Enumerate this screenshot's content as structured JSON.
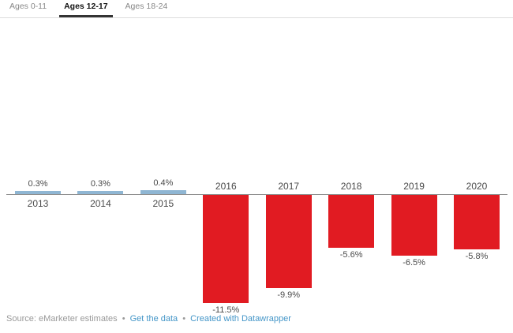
{
  "tabs": [
    {
      "label": "Ages 0-11",
      "active": false
    },
    {
      "label": "Ages 12-17",
      "active": true
    },
    {
      "label": "Ages 18-24",
      "active": false
    }
  ],
  "chart_data": {
    "type": "bar",
    "title": "",
    "xlabel": "",
    "ylabel": "",
    "categories": [
      "2013",
      "2014",
      "2015",
      "2016",
      "2017",
      "2018",
      "2019",
      "2020"
    ],
    "values": [
      0.3,
      0.3,
      0.4,
      -11.5,
      -9.9,
      -5.6,
      -6.5,
      -5.8
    ],
    "labels": [
      "0.3%",
      "0.3%",
      "0.4%",
      "-11.5%",
      "-9.9%",
      "-5.6%",
      "-6.5%",
      "-5.8%"
    ],
    "ylim": [
      -12.5,
      1
    ],
    "grid": false,
    "legend": false,
    "positive_color": "#8fb6d3",
    "negative_color": "#e11b22",
    "axis_color": "#8f8f8f",
    "label_color": "#4a4a4a"
  },
  "footer": {
    "source_label": "Source: eMarketer estimates",
    "separator": "•",
    "links": [
      {
        "label": "Get the data"
      },
      {
        "label": "Created with Datawrapper"
      }
    ]
  }
}
